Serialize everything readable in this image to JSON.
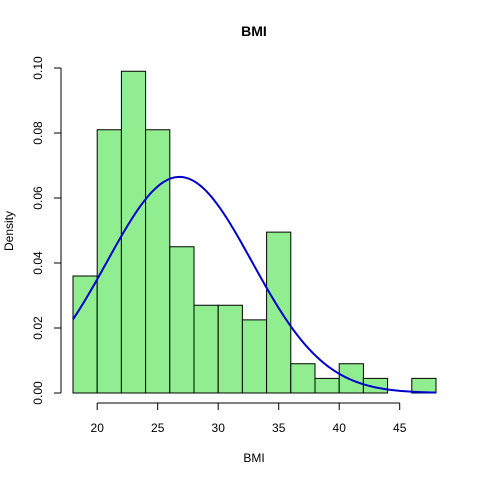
{
  "chart_data": {
    "type": "bar",
    "title": "BMI",
    "xlabel": "BMI",
    "ylabel": "Density",
    "xlim": [
      18,
      48
    ],
    "ylim": [
      0,
      0.1
    ],
    "x_ticks": [
      20,
      25,
      30,
      35,
      40,
      45
    ],
    "y_ticks": [
      0.0,
      0.02,
      0.04,
      0.06,
      0.08,
      0.1
    ],
    "x_tick_labels": [
      "20",
      "25",
      "30",
      "35",
      "40",
      "45"
    ],
    "y_tick_labels": [
      "0.00",
      "0.02",
      "0.04",
      "0.06",
      "0.08",
      "0.10"
    ],
    "grid": false,
    "bins": [
      {
        "x0": 18,
        "x1": 20,
        "density": 0.036
      },
      {
        "x0": 20,
        "x1": 22,
        "density": 0.081
      },
      {
        "x0": 22,
        "x1": 24,
        "density": 0.099
      },
      {
        "x0": 24,
        "x1": 26,
        "density": 0.081
      },
      {
        "x0": 26,
        "x1": 28,
        "density": 0.045
      },
      {
        "x0": 28,
        "x1": 30,
        "density": 0.027
      },
      {
        "x0": 30,
        "x1": 32,
        "density": 0.027
      },
      {
        "x0": 32,
        "x1": 34,
        "density": 0.0225
      },
      {
        "x0": 34,
        "x1": 36,
        "density": 0.0495
      },
      {
        "x0": 36,
        "x1": 38,
        "density": 0.009
      },
      {
        "x0": 38,
        "x1": 40,
        "density": 0.0045
      },
      {
        "x0": 40,
        "x1": 42,
        "density": 0.009
      },
      {
        "x0": 42,
        "x1": 44,
        "density": 0.0045
      },
      {
        "x0": 44,
        "x1": 46,
        "density": 0
      },
      {
        "x0": 46,
        "x1": 48,
        "density": 0.0045
      }
    ],
    "curve": {
      "type": "normal-density",
      "mean": 26.8,
      "sd": 6.0,
      "x_range": [
        18,
        48
      ]
    },
    "colors": {
      "bar_fill": "#90EE90",
      "bar_stroke": "#000000",
      "curve": "#0000CD",
      "axis": "#000000"
    }
  }
}
